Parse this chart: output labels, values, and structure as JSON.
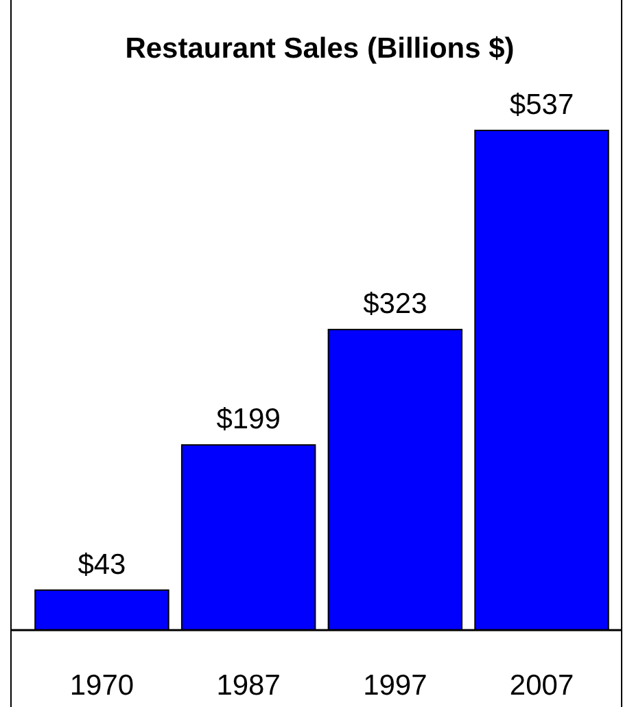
{
  "chart_data": {
    "type": "bar",
    "title": "Restaurant Sales (Billions $)",
    "categories": [
      "1970",
      "1987",
      "1997",
      "2007"
    ],
    "values": [
      43,
      199,
      323,
      537
    ],
    "value_labels": [
      "$43",
      "$199",
      "$323",
      "$537"
    ],
    "color": "#0000ff",
    "tick_labels": "x"
  }
}
